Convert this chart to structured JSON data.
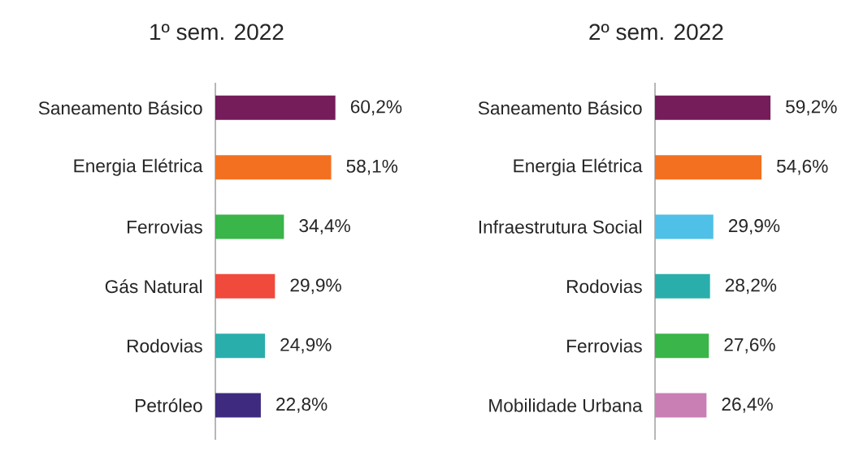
{
  "chart_data": [
    {
      "type": "bar",
      "orientation": "horizontal",
      "title": "1º sem. 2022",
      "tick_labels": "y",
      "categories": [
        "Saneamento Básico",
        "Energia Elétrica",
        "Ferrovias",
        "Gás Natural",
        "Rodovias",
        "Petróleo"
      ],
      "values": [
        60.2,
        58.1,
        34.4,
        29.9,
        24.9,
        22.8
      ],
      "colors": [
        "#751c5a",
        "#f37021",
        "#39b54a",
        "#ef4a3c",
        "#2aaeac",
        "#3e2a7e"
      ],
      "value_labels": [
        "60,2%",
        "58,1%",
        "34,4%",
        "29,9%",
        "24,9%",
        "22,8%"
      ]
    },
    {
      "type": "bar",
      "orientation": "horizontal",
      "title": "2º sem. 2022",
      "tick_labels": "y",
      "categories": [
        "Saneamento Básico",
        "Energia Elétrica",
        "Infraestrutura Social",
        "Rodovias",
        "Ferrovias",
        "Mobilidade Urbana"
      ],
      "values": [
        59.2,
        54.6,
        29.9,
        28.2,
        27.6,
        26.4
      ],
      "colors": [
        "#751c5a",
        "#f37021",
        "#4fc0e8",
        "#2aaeac",
        "#39b54a",
        "#c97fb4"
      ],
      "value_labels": [
        "59,2%",
        "54,6%",
        "29,9%",
        "28,2%",
        "27,6%",
        "26,4%"
      ]
    }
  ]
}
